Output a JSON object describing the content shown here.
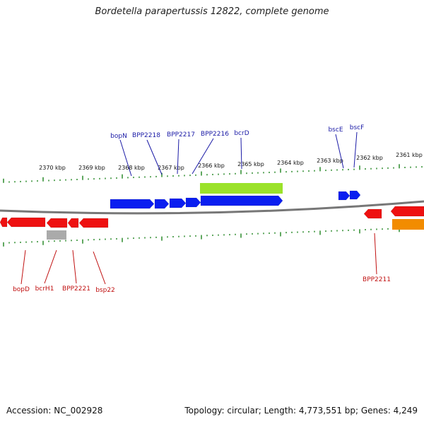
{
  "title": "Bordetella parapertussis 12822, complete genome",
  "footer": {
    "accession": "Accession: NC_002928",
    "stats": "Topology: circular; Length: 4,773,551 bp; Genes: 4,249"
  },
  "scale_labels": [
    "2370 kbp",
    "2369 kbp",
    "2368 kbp",
    "2367 kbp",
    "2366 kbp",
    "2365 kbp",
    "2364 kbp",
    "2363 kbp",
    "2362 kbp",
    "2361 kbp"
  ],
  "top_labels": [
    "bopN",
    "BPP2218",
    "BPP2217",
    "BPP2216",
    "bcrD",
    "bscE",
    "bscF"
  ],
  "bottom_labels": [
    "bopD",
    "bcrH1",
    "BPP2221",
    "bsp22",
    "BPP2211"
  ],
  "colors": {
    "forward_gene": "#0a1ef0",
    "reverse_gene": "#ee1111",
    "rna_feature": "#9be22a",
    "gray_feature": "#aaaaaa",
    "orange_feature": "#f28c00",
    "backbone": "#777777",
    "tick": "#2a8a2a",
    "top_label": "#1a1aa6",
    "bottom_label": "#c01010"
  }
}
